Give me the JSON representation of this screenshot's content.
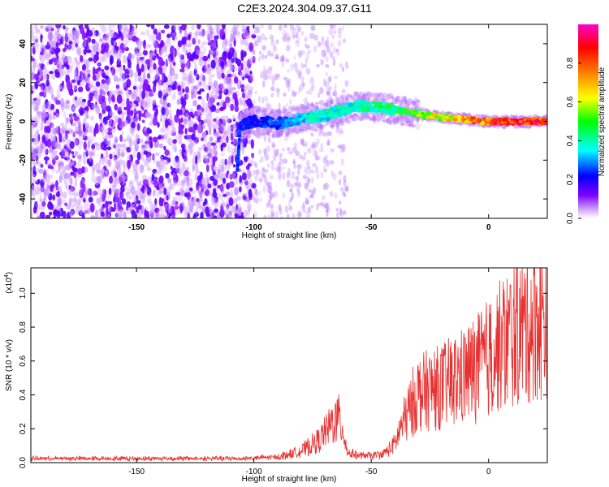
{
  "title": "C2E3.2024.304.09.37.G11",
  "chart_data": [
    {
      "type": "heatmap",
      "title": "C2E3.2024.304.09.37.G11",
      "xlabel": "Height of straight line (km)",
      "ylabel": "Frequency (Hz)",
      "xlim": [
        -195,
        25
      ],
      "ylim": [
        -50,
        50
      ],
      "x_ticks": [
        -150,
        -100,
        -50,
        0
      ],
      "y_ticks": [
        -40,
        -20,
        0,
        20,
        40
      ],
      "colorbar": {
        "label": "Normalized spectral amplitude",
        "range": [
          0,
          1
        ],
        "ticks": [
          0.0,
          0.2,
          0.4,
          0.6,
          0.8
        ],
        "colors": [
          "#ffffff",
          "#7b00ff",
          "#0000ff",
          "#00ffff",
          "#00ff00",
          "#ffff00",
          "#ff8000",
          "#ff0000",
          "#ff00ff"
        ]
      },
      "ridge": {
        "x": [
          -106,
          -100,
          -90,
          -80,
          -70,
          -62,
          -55,
          -45,
          -35,
          -30,
          -20,
          -10,
          0,
          10,
          25
        ],
        "frequency": [
          -2,
          0,
          -1,
          1,
          3,
          6,
          8,
          7,
          5,
          4,
          2,
          1,
          0,
          0,
          0
        ],
        "amplitude": [
          0.25,
          0.25,
          0.3,
          0.4,
          0.4,
          0.45,
          0.45,
          0.5,
          0.55,
          0.6,
          0.7,
          0.8,
          0.9,
          0.95,
          0.95
        ]
      }
    },
    {
      "type": "line",
      "xlabel": "Height of straight line (km)",
      "ylabel": "SNR (10 * v/v)",
      "y_multiplier": "(x10",
      "y_multiplier_exp": "4",
      "xlim": [
        -195,
        25
      ],
      "ylim": [
        0,
        1.15
      ],
      "x_ticks": [
        -150,
        -100,
        -50,
        0
      ],
      "y_ticks": [
        "0.0",
        "0.2",
        "0.4",
        "0.6",
        "0.8",
        "1.0"
      ],
      "series": [
        {
          "color": "#e83030",
          "x": [
            -195,
            -180,
            -160,
            -140,
            -120,
            -105,
            -90,
            -80,
            -72,
            -66,
            -64,
            -62,
            -60,
            -55,
            -50,
            -45,
            -40,
            -37,
            -34,
            -32,
            -30,
            -25,
            -20,
            -15,
            -10,
            -5,
            0,
            5,
            10,
            15,
            20,
            25
          ],
          "y": [
            0.02,
            0.02,
            0.02,
            0.02,
            0.02,
            0.02,
            0.03,
            0.07,
            0.15,
            0.28,
            0.3,
            0.22,
            0.06,
            0.04,
            0.04,
            0.05,
            0.12,
            0.25,
            0.35,
            0.42,
            0.47,
            0.5,
            0.52,
            0.56,
            0.6,
            0.65,
            0.72,
            0.8,
            0.88,
            0.93,
            0.97,
            1.0
          ]
        }
      ]
    }
  ]
}
